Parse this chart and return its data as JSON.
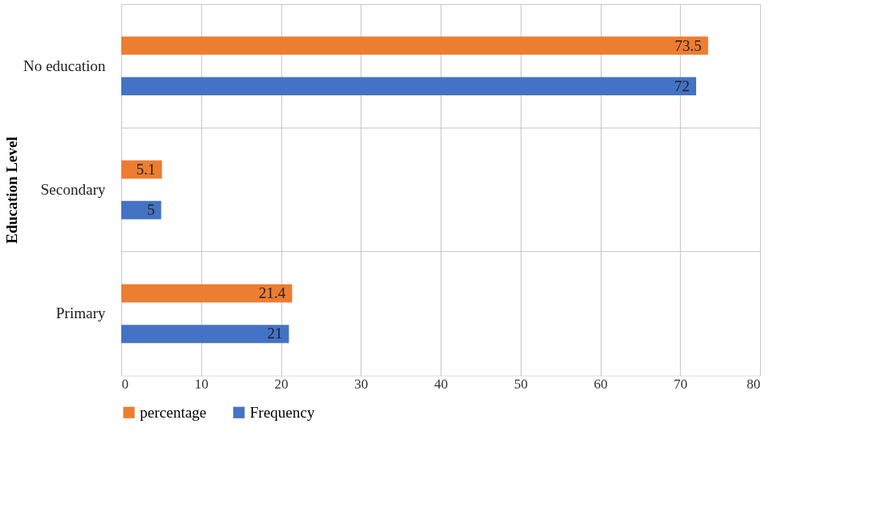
{
  "chart_data": {
    "type": "bar",
    "orientation": "horizontal",
    "ylabel": "Education Level",
    "categories": [
      "No education",
      "Secondary",
      "Primary"
    ],
    "series": [
      {
        "name": "percentage",
        "color": "#ed7d31",
        "values": [
          73.5,
          5.1,
          21.4
        ]
      },
      {
        "name": "Frequency",
        "color": "#4472c4",
        "values": [
          72,
          5,
          21
        ]
      }
    ],
    "xlim": [
      0,
      80
    ],
    "xticks": [
      0,
      10,
      20,
      30,
      40,
      50,
      60,
      70,
      80
    ],
    "grid": "x",
    "legend": "bottom",
    "data_labels": true
  }
}
